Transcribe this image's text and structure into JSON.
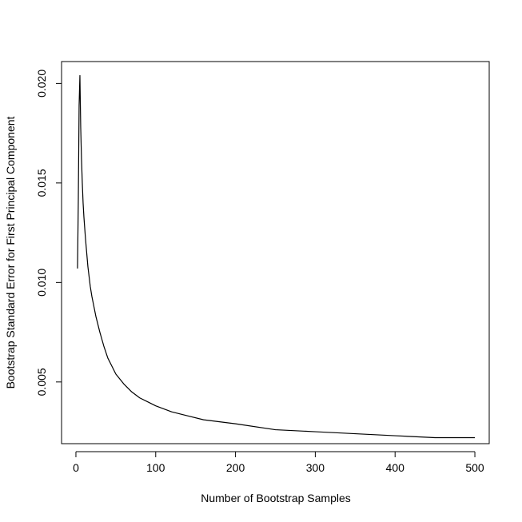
{
  "chart_data": {
    "type": "line",
    "title": "",
    "xlabel": "Number of Bootstrap Samples",
    "ylabel": "Bootstrap Standard Error for First Principal Component",
    "xlim": [
      -18,
      518
    ],
    "ylim": [
      0.0019,
      0.0211
    ],
    "xticks": [
      0,
      100,
      200,
      300,
      400,
      500
    ],
    "xtick_labels": [
      "0",
      "100",
      "200",
      "300",
      "400",
      "500"
    ],
    "yticks": [
      0.005,
      0.01,
      0.015,
      0.02
    ],
    "ytick_labels": [
      "0.005",
      "0.010",
      "0.015",
      "0.020"
    ],
    "grid": false,
    "legend": "none",
    "colors": {
      "line": "#000000",
      "axes": "#000000"
    },
    "series": [
      {
        "x": [
          2,
          3,
          4,
          5,
          6,
          7,
          8,
          9,
          10,
          12,
          15,
          18,
          20,
          25,
          30,
          35,
          40,
          45,
          50,
          60,
          70,
          80,
          90,
          100,
          120,
          140,
          160,
          180,
          200,
          250,
          300,
          350,
          400,
          450,
          500
        ],
        "y": [
          0.0107,
          0.0141,
          0.0189,
          0.0204,
          0.0178,
          0.0162,
          0.015,
          0.014,
          0.0133,
          0.0122,
          0.0108,
          0.0098,
          0.0093,
          0.0083,
          0.0075,
          0.0068,
          0.0062,
          0.0058,
          0.0054,
          0.0049,
          0.0045,
          0.0042,
          0.004,
          0.0038,
          0.0035,
          0.0033,
          0.0031,
          0.003,
          0.0029,
          0.0026,
          0.0025,
          0.0024,
          0.0023,
          0.0022,
          0.0022
        ]
      }
    ]
  }
}
